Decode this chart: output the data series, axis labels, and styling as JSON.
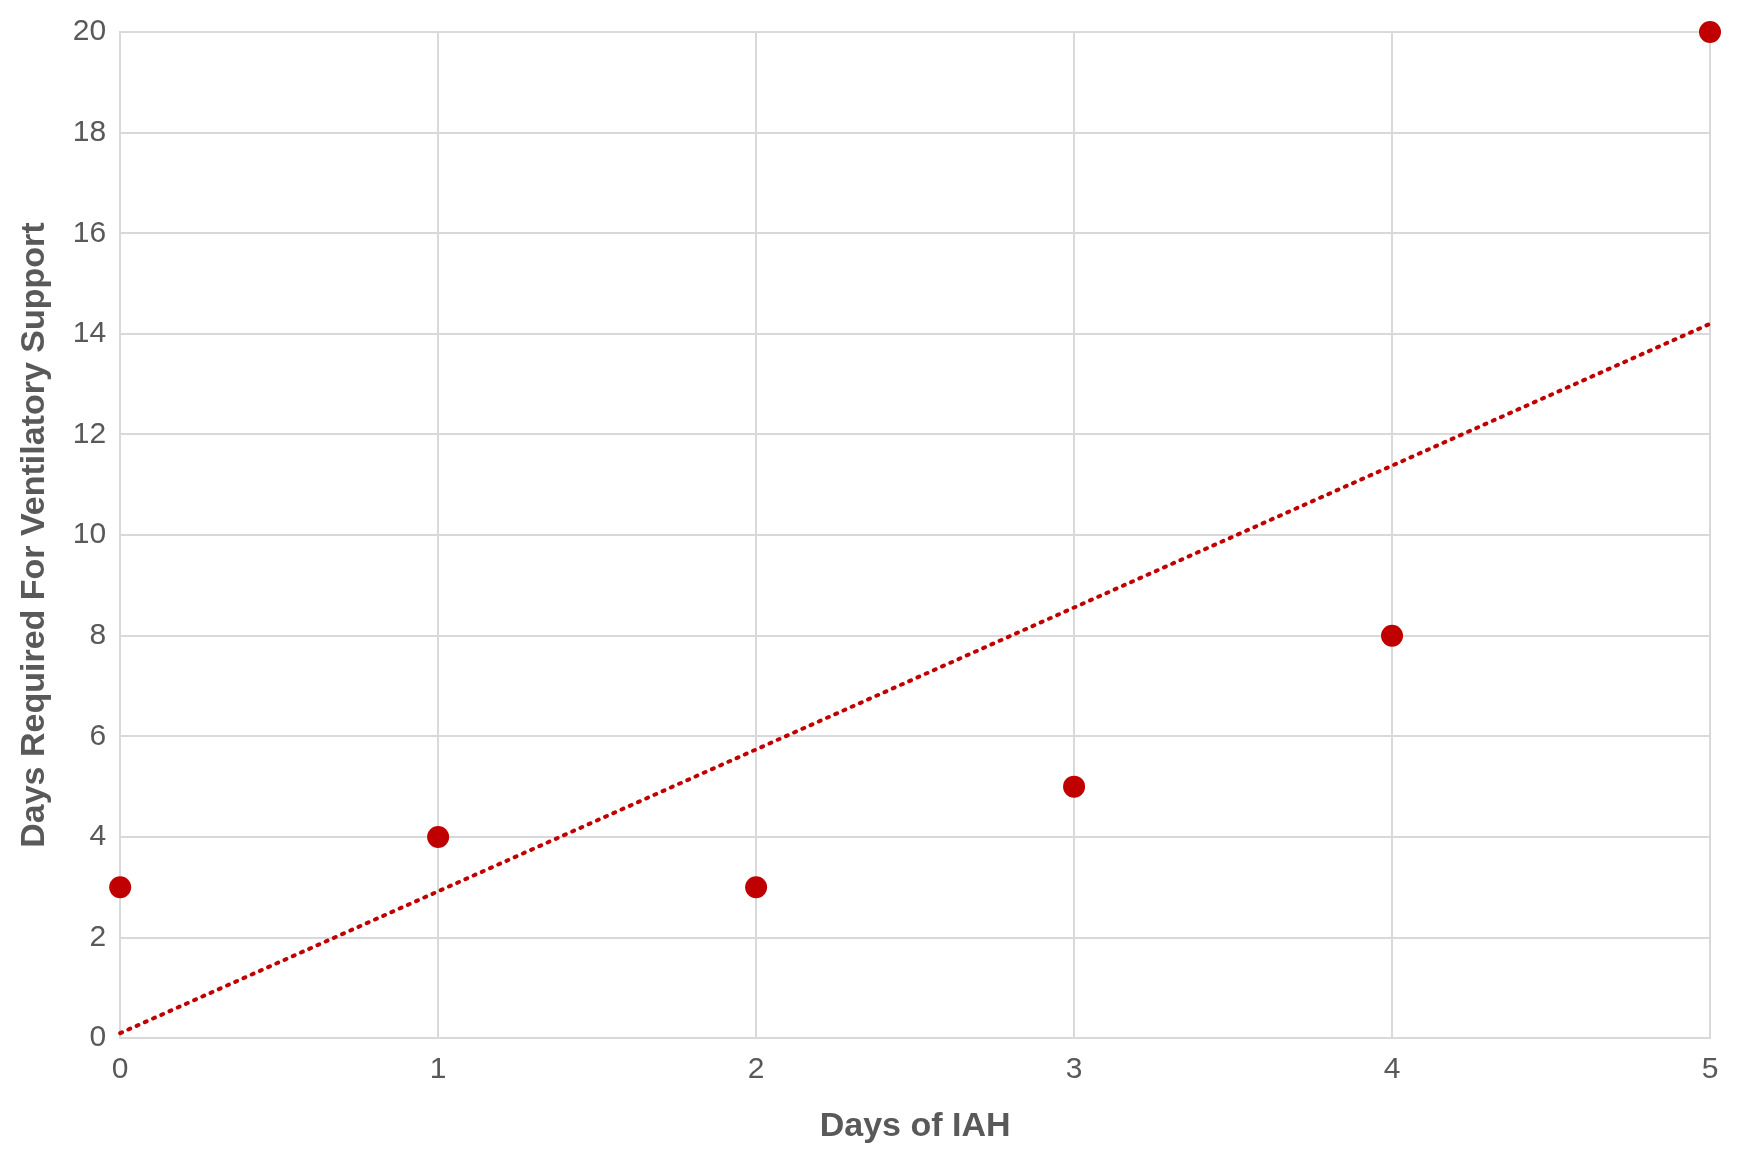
{
  "chart_data": {
    "type": "scatter",
    "xlabel": "Days of IAH",
    "ylabel": "Days Required For Ventilatory Support",
    "xlim": [
      0,
      5
    ],
    "xticks": [
      0,
      1,
      2,
      3,
      4,
      5
    ],
    "ylim": [
      0,
      20
    ],
    "yticks": [
      0,
      2,
      4,
      6,
      8,
      10,
      12,
      14,
      16,
      18,
      20
    ],
    "grid": true,
    "legend": false,
    "series": [
      {
        "color": "#c00000",
        "x": [
          0,
          1,
          2,
          3,
          4,
          5
        ],
        "values": [
          3,
          4,
          3,
          5,
          8,
          20
        ],
        "marker": "circle"
      },
      {
        "type": "line",
        "color": "#c00000",
        "x": [
          0,
          5
        ],
        "values": [
          0.1,
          14.2
        ],
        "marker": "none",
        "line_style": "dotted"
      }
    ]
  }
}
